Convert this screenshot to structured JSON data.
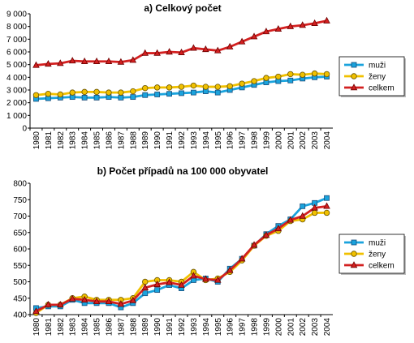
{
  "chart_data": [
    {
      "type": "line",
      "title": "a) Celkový počet",
      "categories": [
        "1980",
        "1981",
        "1982",
        "1983",
        "1984",
        "1985",
        "1986",
        "1987",
        "1988",
        "1989",
        "1990",
        "1991",
        "1992",
        "1993",
        "1994",
        "1995",
        "1996",
        "1997",
        "1998",
        "1999",
        "2000",
        "2001",
        "2002",
        "2003",
        "2004"
      ],
      "y_ticks": [
        "0",
        "1 000",
        "2 000",
        "3 000",
        "4 000",
        "5 000",
        "6 000",
        "7 000",
        "8 000",
        "9 000"
      ],
      "ylim": [
        0,
        9000
      ],
      "grid": false,
      "legend_position": "right",
      "series": [
        {
          "name": "muži",
          "color": "#1aa3dd",
          "marker": "square",
          "values": [
            2300,
            2350,
            2400,
            2450,
            2400,
            2400,
            2450,
            2400,
            2450,
            2600,
            2650,
            2700,
            2750,
            2800,
            2900,
            2800,
            3000,
            3200,
            3400,
            3600,
            3700,
            3750,
            3900,
            4000,
            4050
          ]
        },
        {
          "name": "ženy",
          "color": "#f0c000",
          "marker": "circle",
          "values": [
            2600,
            2700,
            2650,
            2800,
            2850,
            2850,
            2800,
            2800,
            2900,
            3150,
            3200,
            3200,
            3250,
            3350,
            3250,
            3250,
            3300,
            3500,
            3700,
            3950,
            4050,
            4250,
            4200,
            4300,
            4250
          ]
        },
        {
          "name": "celkem",
          "color": "#d32020",
          "marker": "triangle",
          "values": [
            4950,
            5050,
            5100,
            5300,
            5250,
            5250,
            5250,
            5200,
            5350,
            5900,
            5900,
            6000,
            5950,
            6300,
            6200,
            6100,
            6400,
            6800,
            7200,
            7600,
            7800,
            8000,
            8100,
            8250,
            8450
          ]
        }
      ]
    },
    {
      "type": "line",
      "title": "b) Počet případů na 100 000 obyvatel",
      "categories": [
        "1980",
        "1981",
        "1982",
        "1983",
        "1984",
        "1985",
        "1986",
        "1987",
        "1988",
        "1989",
        "1990",
        "1991",
        "1992",
        "1993",
        "1994",
        "1995",
        "1996",
        "1997",
        "1998",
        "1999",
        "2000",
        "2001",
        "2002",
        "2003",
        "2004"
      ],
      "y_ticks": [
        "400",
        "450",
        "500",
        "550",
        "600",
        "650",
        "700",
        "750",
        "800"
      ],
      "ylim": [
        400,
        800
      ],
      "grid": false,
      "legend_position": "right",
      "series": [
        {
          "name": "muži",
          "color": "#1aa3dd",
          "marker": "square",
          "values": [
            420,
            425,
            425,
            445,
            435,
            435,
            435,
            422,
            435,
            465,
            475,
            490,
            480,
            505,
            510,
            500,
            540,
            570,
            610,
            645,
            670,
            690,
            730,
            740,
            755
          ]
        },
        {
          "name": "ženy",
          "color": "#f0c000",
          "marker": "circle",
          "values": [
            405,
            430,
            430,
            450,
            455,
            445,
            445,
            445,
            450,
            500,
            505,
            505,
            500,
            530,
            505,
            510,
            530,
            565,
            610,
            640,
            655,
            685,
            690,
            710,
            710
          ]
        },
        {
          "name": "celkem",
          "color": "#d32020",
          "marker": "triangle",
          "values": [
            410,
            430,
            430,
            448,
            445,
            440,
            440,
            432,
            443,
            482,
            492,
            498,
            490,
            518,
            508,
            505,
            535,
            570,
            612,
            642,
            662,
            688,
            700,
            725,
            730
          ]
        }
      ]
    }
  ]
}
